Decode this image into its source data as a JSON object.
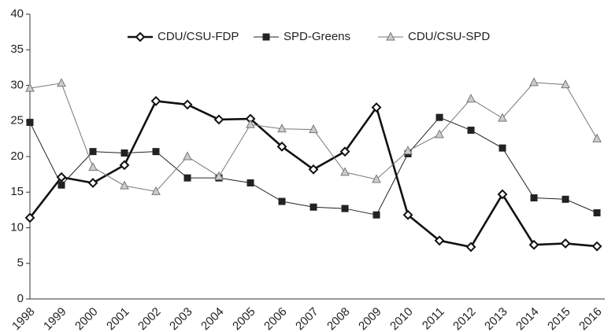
{
  "chart_data": {
    "type": "line",
    "categories": [
      "1998",
      "1999",
      "2000",
      "2001",
      "2002",
      "2003",
      "2004",
      "2005",
      "2006",
      "2007",
      "2008",
      "2009",
      "2010",
      "2011",
      "2012",
      "2013",
      "2014",
      "2015",
      "2016"
    ],
    "series": [
      {
        "name": "CDU/CSU-FDP",
        "color": "#111111",
        "marker": "diamond",
        "width": 2.6,
        "values": [
          11.4,
          17.1,
          16.3,
          18.8,
          27.8,
          27.3,
          25.2,
          25.3,
          21.4,
          18.2,
          20.7,
          26.9,
          11.8,
          8.2,
          7.3,
          14.7,
          7.6,
          7.8,
          7.4
        ]
      },
      {
        "name": "SPD-Greens",
        "color": "#222222",
        "marker": "square",
        "width": 1,
        "values": [
          24.8,
          16.0,
          20.7,
          20.5,
          20.7,
          17.0,
          17.0,
          16.3,
          13.7,
          12.9,
          12.7,
          11.8,
          20.4,
          25.5,
          23.7,
          21.2,
          14.2,
          14.0,
          12.1
        ]
      },
      {
        "name": "CDU/CSU-SPD",
        "color": "#777777",
        "marker": "triangle",
        "width": 1,
        "values": [
          29.6,
          30.3,
          18.5,
          15.9,
          15.1,
          20.0,
          17.2,
          24.5,
          23.9,
          23.8,
          17.8,
          16.8,
          20.8,
          23.1,
          28.1,
          25.4,
          30.4,
          30.1,
          22.5
        ]
      }
    ],
    "ylim": [
      0,
      40
    ],
    "yticks": [
      0,
      5,
      10,
      15,
      20,
      25,
      30,
      35,
      40
    ],
    "grid": false,
    "legend": "top"
  }
}
